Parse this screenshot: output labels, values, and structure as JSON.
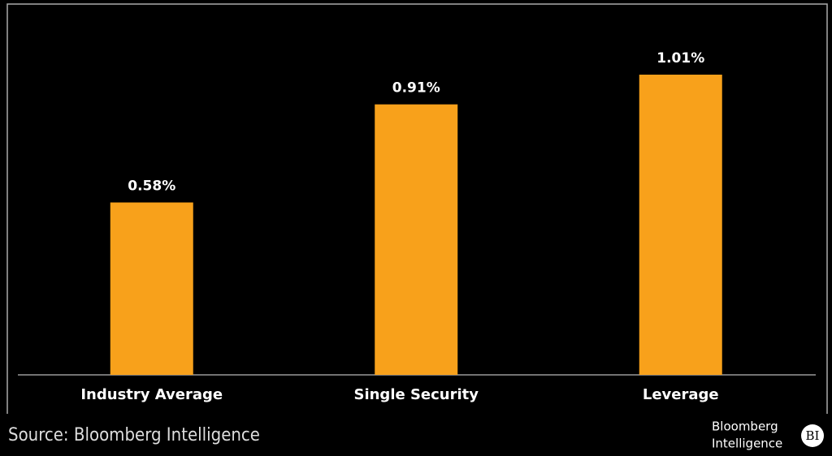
{
  "chart_data": {
    "type": "bar",
    "categories": [
      "Industry Average",
      "Single Security",
      "Leverage"
    ],
    "values": [
      0.58,
      0.91,
      1.01
    ],
    "value_labels": [
      "0.58%",
      "0.91%",
      "1.01%"
    ],
    "color": "#f8a11b",
    "source": "Source: Bloomberg Intelligence",
    "logo": {
      "lines": [
        "Bloomberg",
        "Intelligence"
      ],
      "badge": "BI"
    }
  }
}
